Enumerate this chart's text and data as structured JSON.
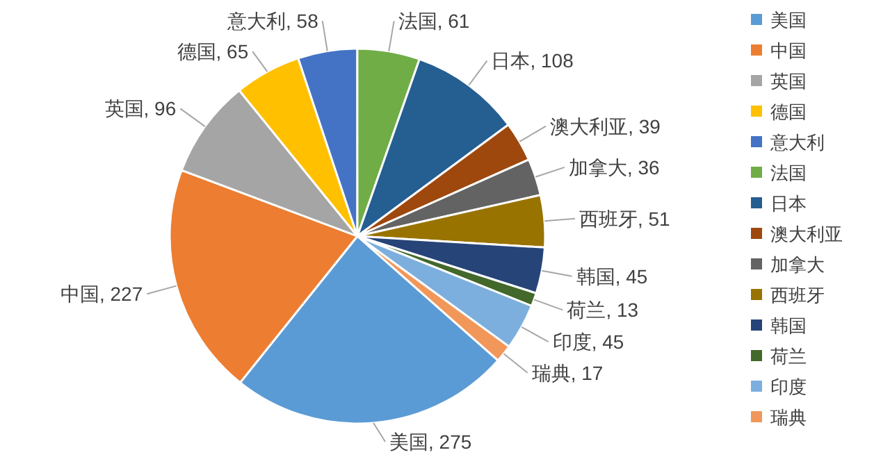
{
  "chart_data": {
    "type": "pie",
    "categories": [
      "美国",
      "中国",
      "英国",
      "德国",
      "意大利",
      "法国",
      "日本",
      "澳大利亚",
      "加拿大",
      "西班牙",
      "韩国",
      "荷兰",
      "印度",
      "瑞典"
    ],
    "values": [
      275,
      227,
      96,
      65,
      58,
      61,
      108,
      39,
      36,
      51,
      45,
      13,
      45,
      17
    ],
    "colors": [
      "#5b9bd5",
      "#ed7d31",
      "#a5a5a5",
      "#ffc000",
      "#4472c4",
      "#70ad47",
      "#255e91",
      "#9e480e",
      "#636363",
      "#997300",
      "#264478",
      "#43682b",
      "#7cafdd",
      "#f1975a"
    ],
    "value_labels": [
      "美国, 275",
      "中国, 227",
      "英国, 96",
      "德国, 65",
      "意大利, 58",
      "法国, 61",
      "日本, 108",
      "澳大利亚, 39",
      "加拿大, 36",
      "西班牙, 51",
      "韩国, 45",
      "荷兰, 13",
      "印度, 45",
      "瑞典, 17"
    ],
    "legend": "right"
  }
}
